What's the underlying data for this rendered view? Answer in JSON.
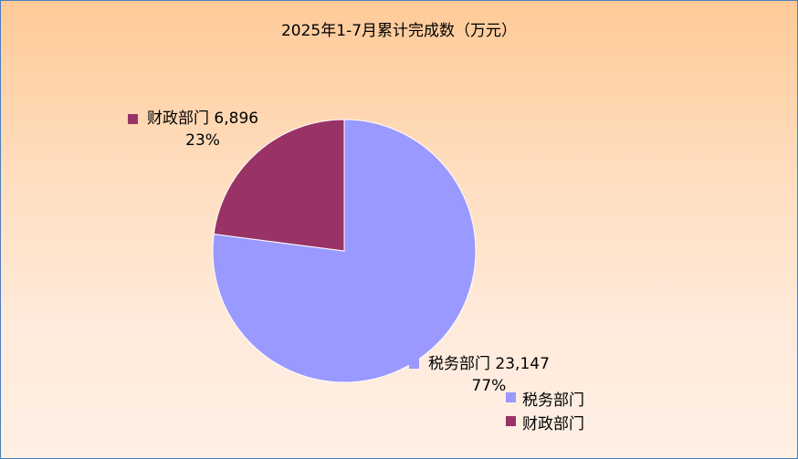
{
  "chart_data": {
    "type": "pie",
    "title": "2025年1-7月累计完成数（万元）",
    "slices": [
      {
        "name": "税务部门",
        "value": 23147,
        "value_label": "23,147",
        "percent_label": "77%",
        "color": "#9999ff"
      },
      {
        "name": "财政部门",
        "value": 6896,
        "value_label": "6,896",
        "percent_label": "23%",
        "color": "#993366"
      }
    ],
    "start_angle": "12 o'clock",
    "direction": "clockwise",
    "legend": {
      "position": "bottom-right",
      "entries": [
        "税务部门",
        "财政部门"
      ]
    }
  }
}
